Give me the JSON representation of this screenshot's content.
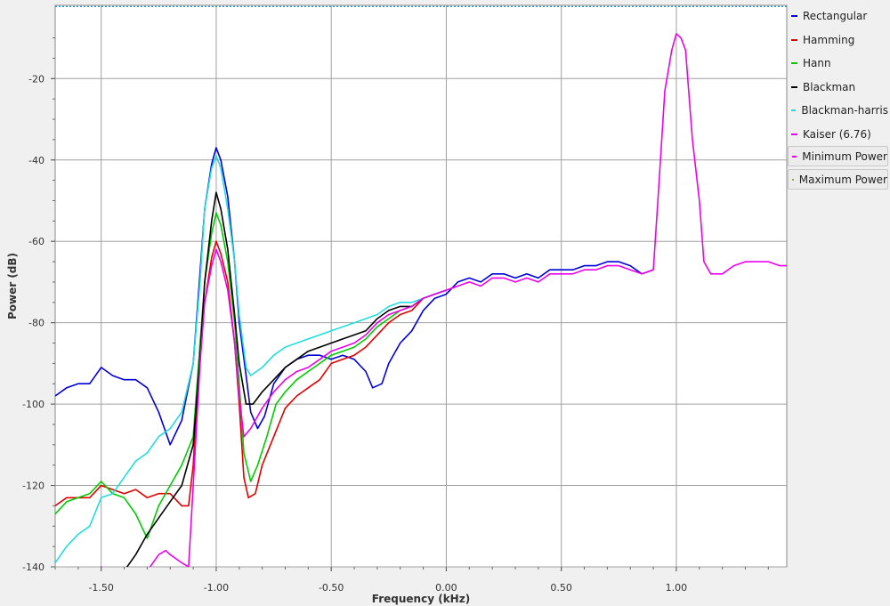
{
  "chart_data": {
    "type": "line",
    "xlabel": "Frequency (kHz)",
    "ylabel": "Power (dB)",
    "xlim": [
      -1.7,
      1.48
    ],
    "ylim": [
      -140,
      -2
    ],
    "xticks": [
      -1.5,
      -1.0,
      -0.5,
      0.0,
      0.5,
      1.0
    ],
    "xtick_labels": [
      "-1.50",
      "-1.00",
      "-0.50",
      "0.00",
      "0.50",
      "1.00"
    ],
    "yticks": [
      -20,
      -40,
      -60,
      -80,
      -100,
      -120,
      -140
    ],
    "ytick_labels": [
      "-20",
      "-40",
      "-60",
      "-80",
      "-100",
      "-120",
      "-140"
    ],
    "grid": true,
    "legend_position": "right",
    "series": [
      {
        "name": "Rectangular",
        "color": "#0000d8",
        "points": [
          [
            -1.7,
            -98
          ],
          [
            -1.65,
            -96
          ],
          [
            -1.6,
            -95
          ],
          [
            -1.55,
            -95
          ],
          [
            -1.5,
            -91
          ],
          [
            -1.45,
            -93
          ],
          [
            -1.4,
            -94
          ],
          [
            -1.35,
            -94
          ],
          [
            -1.3,
            -96
          ],
          [
            -1.25,
            -102
          ],
          [
            -1.2,
            -110
          ],
          [
            -1.15,
            -104
          ],
          [
            -1.1,
            -90
          ],
          [
            -1.08,
            -75
          ],
          [
            -1.05,
            -52
          ],
          [
            -1.02,
            -41
          ],
          [
            -1.0,
            -37
          ],
          [
            -0.98,
            -40
          ],
          [
            -0.95,
            -49
          ],
          [
            -0.92,
            -65
          ],
          [
            -0.9,
            -80
          ],
          [
            -0.87,
            -93
          ],
          [
            -0.85,
            -102
          ],
          [
            -0.82,
            -106
          ],
          [
            -0.79,
            -103
          ],
          [
            -0.75,
            -95
          ],
          [
            -0.7,
            -91
          ],
          [
            -0.65,
            -89
          ],
          [
            -0.6,
            -88
          ],
          [
            -0.55,
            -88
          ],
          [
            -0.5,
            -89
          ],
          [
            -0.45,
            -88
          ],
          [
            -0.4,
            -89
          ],
          [
            -0.35,
            -92
          ],
          [
            -0.32,
            -96
          ],
          [
            -0.28,
            -95
          ],
          [
            -0.25,
            -90
          ],
          [
            -0.2,
            -85
          ],
          [
            -0.15,
            -82
          ],
          [
            -0.1,
            -77
          ],
          [
            -0.05,
            -74
          ],
          [
            0.0,
            -73
          ],
          [
            0.05,
            -70
          ],
          [
            0.1,
            -69
          ],
          [
            0.15,
            -70
          ],
          [
            0.2,
            -68
          ],
          [
            0.25,
            -68
          ],
          [
            0.3,
            -69
          ],
          [
            0.35,
            -68
          ],
          [
            0.4,
            -69
          ],
          [
            0.45,
            -67
          ],
          [
            0.5,
            -67
          ],
          [
            0.55,
            -67
          ],
          [
            0.6,
            -66
          ],
          [
            0.65,
            -66
          ],
          [
            0.7,
            -65
          ],
          [
            0.75,
            -65
          ],
          [
            0.8,
            -66
          ],
          [
            0.85,
            -68
          ],
          [
            0.9,
            -67
          ]
        ]
      },
      {
        "name": "Hamming",
        "color": "#e00000",
        "points": [
          [
            -1.7,
            -125
          ],
          [
            -1.65,
            -123
          ],
          [
            -1.6,
            -123
          ],
          [
            -1.55,
            -123
          ],
          [
            -1.5,
            -120
          ],
          [
            -1.45,
            -121
          ],
          [
            -1.4,
            -122
          ],
          [
            -1.35,
            -121
          ],
          [
            -1.3,
            -123
          ],
          [
            -1.25,
            -122
          ],
          [
            -1.2,
            -122
          ],
          [
            -1.15,
            -125
          ],
          [
            -1.12,
            -125
          ],
          [
            -1.1,
            -115
          ],
          [
            -1.07,
            -85
          ],
          [
            -1.05,
            -75
          ],
          [
            -1.02,
            -64
          ],
          [
            -1.0,
            -60
          ],
          [
            -0.98,
            -63
          ],
          [
            -0.95,
            -70
          ],
          [
            -0.92,
            -85
          ],
          [
            -0.9,
            -100
          ],
          [
            -0.88,
            -118
          ],
          [
            -0.86,
            -123
          ],
          [
            -0.83,
            -122
          ],
          [
            -0.8,
            -115
          ],
          [
            -0.75,
            -108
          ],
          [
            -0.7,
            -101
          ],
          [
            -0.65,
            -98
          ],
          [
            -0.6,
            -96
          ],
          [
            -0.55,
            -94
          ],
          [
            -0.5,
            -90
          ],
          [
            -0.45,
            -89
          ],
          [
            -0.4,
            -88
          ],
          [
            -0.35,
            -86
          ],
          [
            -0.3,
            -83
          ],
          [
            -0.25,
            -80
          ],
          [
            -0.2,
            -78
          ],
          [
            -0.15,
            -77
          ],
          [
            -0.1,
            -74
          ],
          [
            -0.05,
            -73
          ],
          [
            0.0,
            -72
          ]
        ]
      },
      {
        "name": "Hann",
        "color": "#00cc00",
        "points": [
          [
            -1.7,
            -127
          ],
          [
            -1.65,
            -124
          ],
          [
            -1.6,
            -123
          ],
          [
            -1.55,
            -122
          ],
          [
            -1.5,
            -119
          ],
          [
            -1.45,
            -122
          ],
          [
            -1.4,
            -123
          ],
          [
            -1.35,
            -127
          ],
          [
            -1.3,
            -133
          ],
          [
            -1.25,
            -125
          ],
          [
            -1.2,
            -120
          ],
          [
            -1.15,
            -115
          ],
          [
            -1.1,
            -108
          ],
          [
            -1.07,
            -85
          ],
          [
            -1.05,
            -70
          ],
          [
            -1.02,
            -58
          ],
          [
            -1.0,
            -53
          ],
          [
            -0.98,
            -56
          ],
          [
            -0.95,
            -65
          ],
          [
            -0.92,
            -80
          ],
          [
            -0.9,
            -95
          ],
          [
            -0.88,
            -112
          ],
          [
            -0.85,
            -119
          ],
          [
            -0.82,
            -115
          ],
          [
            -0.78,
            -108
          ],
          [
            -0.74,
            -100
          ],
          [
            -0.7,
            -97
          ],
          [
            -0.65,
            -94
          ],
          [
            -0.6,
            -92
          ],
          [
            -0.55,
            -90
          ],
          [
            -0.5,
            -88
          ],
          [
            -0.45,
            -87
          ],
          [
            -0.4,
            -86
          ],
          [
            -0.35,
            -84
          ],
          [
            -0.3,
            -81
          ],
          [
            -0.25,
            -79
          ],
          [
            -0.2,
            -77
          ],
          [
            -0.15,
            -76
          ],
          [
            -0.1,
            -74
          ],
          [
            -0.05,
            -73
          ],
          [
            0.0,
            -72
          ]
        ]
      },
      {
        "name": "Blackman",
        "color": "#000000",
        "points": [
          [
            -1.4,
            -141
          ],
          [
            -1.35,
            -137
          ],
          [
            -1.3,
            -132
          ],
          [
            -1.25,
            -128
          ],
          [
            -1.2,
            -124
          ],
          [
            -1.15,
            -120
          ],
          [
            -1.1,
            -110
          ],
          [
            -1.07,
            -88
          ],
          [
            -1.05,
            -70
          ],
          [
            -1.02,
            -55
          ],
          [
            -1.0,
            -48
          ],
          [
            -0.98,
            -52
          ],
          [
            -0.95,
            -62
          ],
          [
            -0.92,
            -78
          ],
          [
            -0.9,
            -90
          ],
          [
            -0.87,
            -100
          ],
          [
            -0.84,
            -100
          ],
          [
            -0.8,
            -97
          ],
          [
            -0.75,
            -94
          ],
          [
            -0.7,
            -91
          ],
          [
            -0.65,
            -89
          ],
          [
            -0.6,
            -87
          ],
          [
            -0.55,
            -86
          ],
          [
            -0.5,
            -85
          ],
          [
            -0.45,
            -84
          ],
          [
            -0.4,
            -83
          ],
          [
            -0.35,
            -82
          ],
          [
            -0.3,
            -79
          ],
          [
            -0.25,
            -77
          ],
          [
            -0.2,
            -76
          ],
          [
            -0.15,
            -76
          ],
          [
            -0.1,
            -74
          ],
          [
            -0.05,
            -73
          ],
          [
            0.0,
            -72
          ]
        ]
      },
      {
        "name": "Blackman-harris",
        "color": "#22dddd",
        "points": [
          [
            -1.7,
            -139
          ],
          [
            -1.65,
            -135
          ],
          [
            -1.6,
            -132
          ],
          [
            -1.55,
            -130
          ],
          [
            -1.5,
            -123
          ],
          [
            -1.45,
            -122
          ],
          [
            -1.4,
            -118
          ],
          [
            -1.35,
            -114
          ],
          [
            -1.3,
            -112
          ],
          [
            -1.25,
            -108
          ],
          [
            -1.2,
            -106
          ],
          [
            -1.15,
            -102
          ],
          [
            -1.1,
            -90
          ],
          [
            -1.07,
            -70
          ],
          [
            -1.05,
            -52
          ],
          [
            -1.02,
            -42
          ],
          [
            -1.0,
            -39
          ],
          [
            -0.98,
            -42
          ],
          [
            -0.95,
            -52
          ],
          [
            -0.92,
            -65
          ],
          [
            -0.9,
            -78
          ],
          [
            -0.87,
            -91
          ],
          [
            -0.85,
            -93
          ],
          [
            -0.8,
            -91
          ],
          [
            -0.75,
            -88
          ],
          [
            -0.7,
            -86
          ],
          [
            -0.65,
            -85
          ],
          [
            -0.6,
            -84
          ],
          [
            -0.55,
            -83
          ],
          [
            -0.5,
            -82
          ],
          [
            -0.45,
            -81
          ],
          [
            -0.4,
            -80
          ],
          [
            -0.35,
            -79
          ],
          [
            -0.3,
            -78
          ],
          [
            -0.25,
            -76
          ],
          [
            -0.2,
            -75
          ],
          [
            -0.15,
            -75
          ],
          [
            -0.1,
            -74
          ],
          [
            -0.05,
            -73
          ],
          [
            0.0,
            -72
          ]
        ]
      },
      {
        "name": "Kaiser (6.76)",
        "color": "#ee00ee",
        "points": [
          [
            -1.52,
            -141
          ],
          [
            -1.5,
            -140
          ],
          [
            -1.48,
            -141
          ],
          [
            -1.3,
            -141
          ],
          [
            -1.25,
            -137
          ],
          [
            -1.22,
            -136
          ],
          [
            -1.2,
            -137
          ],
          [
            -1.15,
            -139
          ],
          [
            -1.12,
            -140
          ],
          [
            -1.1,
            -120
          ],
          [
            -1.07,
            -90
          ],
          [
            -1.05,
            -75
          ],
          [
            -1.02,
            -66
          ],
          [
            -1.0,
            -62
          ],
          [
            -0.98,
            -65
          ],
          [
            -0.95,
            -72
          ],
          [
            -0.92,
            -85
          ],
          [
            -0.9,
            -98
          ],
          [
            -0.88,
            -108
          ],
          [
            -0.85,
            -106
          ],
          [
            -0.8,
            -101
          ],
          [
            -0.75,
            -97
          ],
          [
            -0.7,
            -94
          ],
          [
            -0.65,
            -92
          ],
          [
            -0.6,
            -91
          ],
          [
            -0.55,
            -89
          ],
          [
            -0.5,
            -87
          ],
          [
            -0.45,
            -86
          ],
          [
            -0.4,
            -85
          ],
          [
            -0.35,
            -83
          ],
          [
            -0.3,
            -80
          ],
          [
            -0.25,
            -78
          ],
          [
            -0.2,
            -77
          ],
          [
            -0.15,
            -76
          ],
          [
            -0.1,
            -74
          ],
          [
            -0.05,
            -73
          ],
          [
            0.0,
            -72
          ],
          [
            0.05,
            -71
          ],
          [
            0.1,
            -70
          ],
          [
            0.15,
            -71
          ],
          [
            0.2,
            -69
          ],
          [
            0.25,
            -69
          ],
          [
            0.3,
            -70
          ],
          [
            0.35,
            -69
          ],
          [
            0.4,
            -70
          ],
          [
            0.45,
            -68
          ],
          [
            0.5,
            -68
          ],
          [
            0.55,
            -68
          ],
          [
            0.6,
            -67
          ],
          [
            0.65,
            -67
          ],
          [
            0.7,
            -66
          ],
          [
            0.75,
            -66
          ],
          [
            0.8,
            -67
          ],
          [
            0.85,
            -68
          ],
          [
            0.9,
            -67
          ],
          [
            0.92,
            -50
          ],
          [
            0.95,
            -23
          ],
          [
            0.98,
            -13
          ],
          [
            1.0,
            -9
          ],
          [
            1.02,
            -10
          ],
          [
            1.04,
            -13
          ],
          [
            1.07,
            -35
          ],
          [
            1.1,
            -50
          ],
          [
            1.12,
            -65
          ],
          [
            1.15,
            -68
          ],
          [
            1.2,
            -68
          ],
          [
            1.25,
            -66
          ],
          [
            1.3,
            -65
          ],
          [
            1.35,
            -65
          ],
          [
            1.4,
            -65
          ],
          [
            1.45,
            -66
          ],
          [
            1.48,
            -66
          ]
        ]
      },
      {
        "name": "Minimum Power",
        "color": "#ee00ee",
        "points": []
      },
      {
        "name": "Maximum Power",
        "color": "#99aa44",
        "points": []
      }
    ],
    "reference_line": {
      "y": -2.3,
      "color": "#2299cc",
      "style": "dotted"
    }
  }
}
